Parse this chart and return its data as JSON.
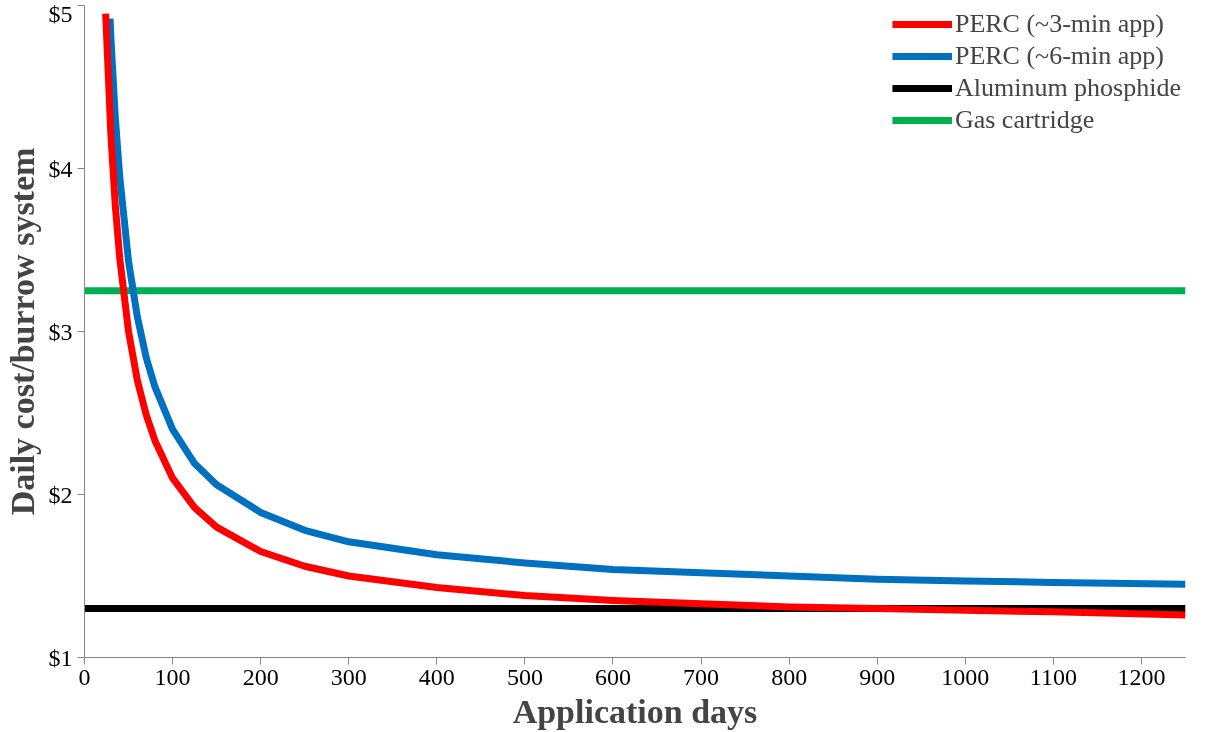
{
  "chart_data": {
    "type": "line",
    "xlabel": "Application days",
    "ylabel": "Daily cost/burrow system",
    "xlim": [
      0,
      1250
    ],
    "xticks": [
      0,
      100,
      200,
      300,
      400,
      500,
      600,
      700,
      800,
      900,
      1000,
      1100,
      1200
    ],
    "ylim": [
      1,
      5
    ],
    "yticks": [
      {
        "value": 1,
        "label": "$1"
      },
      {
        "value": 2,
        "label": "$2"
      },
      {
        "value": 3,
        "label": "$3"
      },
      {
        "value": 4,
        "label": "$4"
      },
      {
        "value": 5,
        "label": "$5"
      }
    ],
    "grid": false,
    "legend": "top right",
    "marker": "none",
    "line_style": "solid",
    "series": [
      {
        "name": "PERC (~3-min app)",
        "color": "#ff0000",
        "x": [
          24,
          30,
          35,
          40,
          50,
          60,
          70,
          80,
          100,
          125,
          150,
          200,
          250,
          300,
          400,
          500,
          600,
          700,
          800,
          900,
          1000,
          1100,
          1250
        ],
        "values": [
          4.95,
          4.2,
          3.77,
          3.45,
          3.0,
          2.7,
          2.49,
          2.33,
          2.1,
          1.92,
          1.8,
          1.65,
          1.56,
          1.5,
          1.43,
          1.38,
          1.35,
          1.33,
          1.31,
          1.3,
          1.29,
          1.28,
          1.26
        ]
      },
      {
        "name": "PERC (~6-min app)",
        "color": "#0070c0",
        "x": [
          29,
          30,
          35,
          40,
          50,
          60,
          70,
          80,
          100,
          125,
          150,
          200,
          250,
          300,
          400,
          500,
          600,
          700,
          800,
          900,
          1000,
          1100,
          1250
        ],
        "values": [
          4.92,
          4.8,
          4.31,
          3.95,
          3.43,
          3.09,
          2.84,
          2.66,
          2.4,
          2.19,
          2.06,
          1.89,
          1.78,
          1.71,
          1.63,
          1.58,
          1.54,
          1.52,
          1.5,
          1.48,
          1.47,
          1.46,
          1.45
        ]
      },
      {
        "name": "Aluminum phosphide",
        "color": "#000000",
        "x": [
          0,
          1250
        ],
        "values": [
          1.3,
          1.3
        ]
      },
      {
        "name": "Gas cartridge",
        "color": "#00b050",
        "x": [
          0,
          1250
        ],
        "values": [
          3.25,
          3.25
        ]
      }
    ]
  }
}
